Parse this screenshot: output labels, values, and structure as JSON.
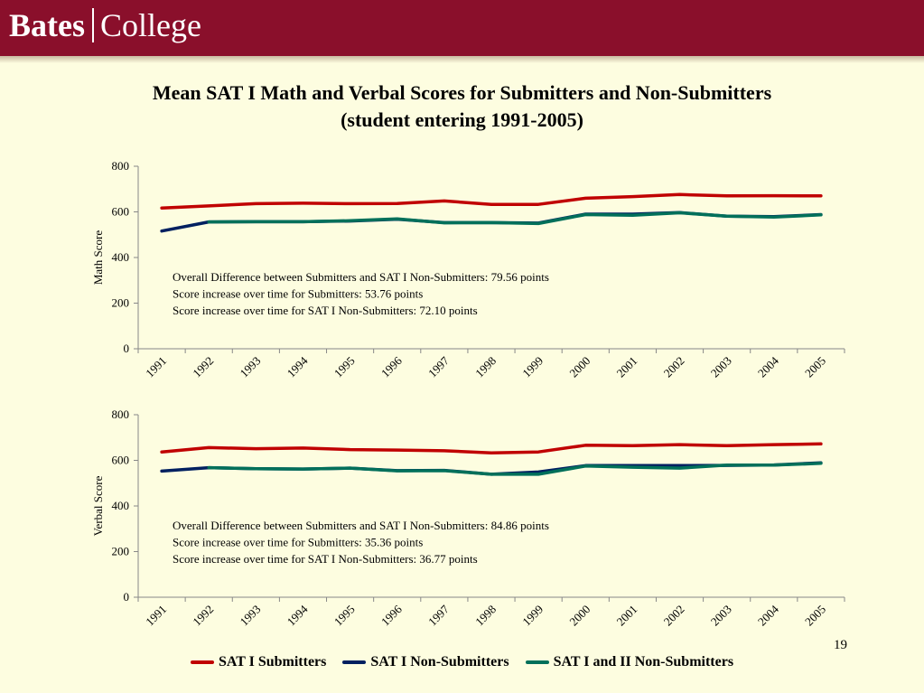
{
  "header": {
    "logo_primary": "Bates",
    "logo_secondary": "College",
    "brand_color": "#8a0f2b"
  },
  "slide": {
    "title_line1": "Mean SAT I Math and Verbal Scores for Submitters and Non-Submitters",
    "title_line2": "(student entering 1991-2005)",
    "page_number": "19",
    "background_color": "#fdfde0"
  },
  "legend": {
    "items": [
      {
        "label": "SAT I Submitters",
        "color": "#c00000"
      },
      {
        "label": "SAT I Non-Submitters",
        "color": "#002060"
      },
      {
        "label": "SAT I and II Non-Submitters",
        "color": "#00705a"
      }
    ],
    "position": "bottom"
  },
  "chart_data": [
    {
      "type": "line",
      "ylabel": "Math Score",
      "ylim": [
        0,
        800
      ],
      "yticks": [
        0,
        200,
        400,
        600,
        800
      ],
      "categories": [
        "1991",
        "1992",
        "1993",
        "1994",
        "1995",
        "1996",
        "1997",
        "1998",
        "1999",
        "2000",
        "2001",
        "2002",
        "2003",
        "2004",
        "2005"
      ],
      "annotations": [
        "Overall Difference between Submitters and SAT I Non-Submitters: 79.56 points",
        "Score increase over time for Submitters: 53.76 points",
        "Score increase over time for SAT I Non-Submitters: 72.10 points"
      ],
      "series": [
        {
          "name": "SAT I Submitters",
          "color": "#c00000",
          "values": [
            617,
            626,
            636,
            638,
            636,
            637,
            648,
            633,
            633,
            660,
            667,
            676,
            670,
            671,
            670
          ]
        },
        {
          "name": "SAT I Non-Submitters",
          "color": "#002060",
          "values": [
            516,
            556,
            557,
            557,
            560,
            568,
            553,
            553,
            551,
            590,
            590,
            597,
            581,
            579,
            588
          ]
        },
        {
          "name": "SAT I and II Non-Submitters",
          "color": "#00705a",
          "values": [
            null,
            556,
            557,
            557,
            561,
            569,
            552,
            553,
            549,
            588,
            585,
            596,
            581,
            577,
            587
          ]
        }
      ]
    },
    {
      "type": "line",
      "ylabel": "Verbal Score",
      "ylim": [
        0,
        800
      ],
      "yticks": [
        0,
        200,
        400,
        600,
        800
      ],
      "categories": [
        "1991",
        "1992",
        "1993",
        "1994",
        "1995",
        "1996",
        "1997",
        "1998",
        "1999",
        "2000",
        "2001",
        "2002",
        "2003",
        "2004",
        "2005"
      ],
      "annotations": [
        "Overall Difference between Submitters and SAT I Non-Submitters: 84.86 points",
        "Score increase over time for Submitters: 35.36 points",
        "Score increase over time for SAT I Non-Submitters: 36.77 points"
      ],
      "series": [
        {
          "name": "SAT I Submitters",
          "color": "#c00000",
          "values": [
            637,
            656,
            651,
            654,
            647,
            645,
            642,
            633,
            637,
            666,
            664,
            669,
            664,
            669,
            672
          ]
        },
        {
          "name": "SAT I Non-Submitters",
          "color": "#002060",
          "values": [
            553,
            568,
            563,
            562,
            566,
            555,
            556,
            539,
            549,
            577,
            577,
            577,
            578,
            580,
            589
          ]
        },
        {
          "name": "SAT I and II Non-Submitters",
          "color": "#00705a",
          "values": [
            null,
            568,
            563,
            562,
            566,
            554,
            555,
            539,
            539,
            575,
            570,
            566,
            579,
            579,
            587
          ]
        }
      ]
    }
  ]
}
